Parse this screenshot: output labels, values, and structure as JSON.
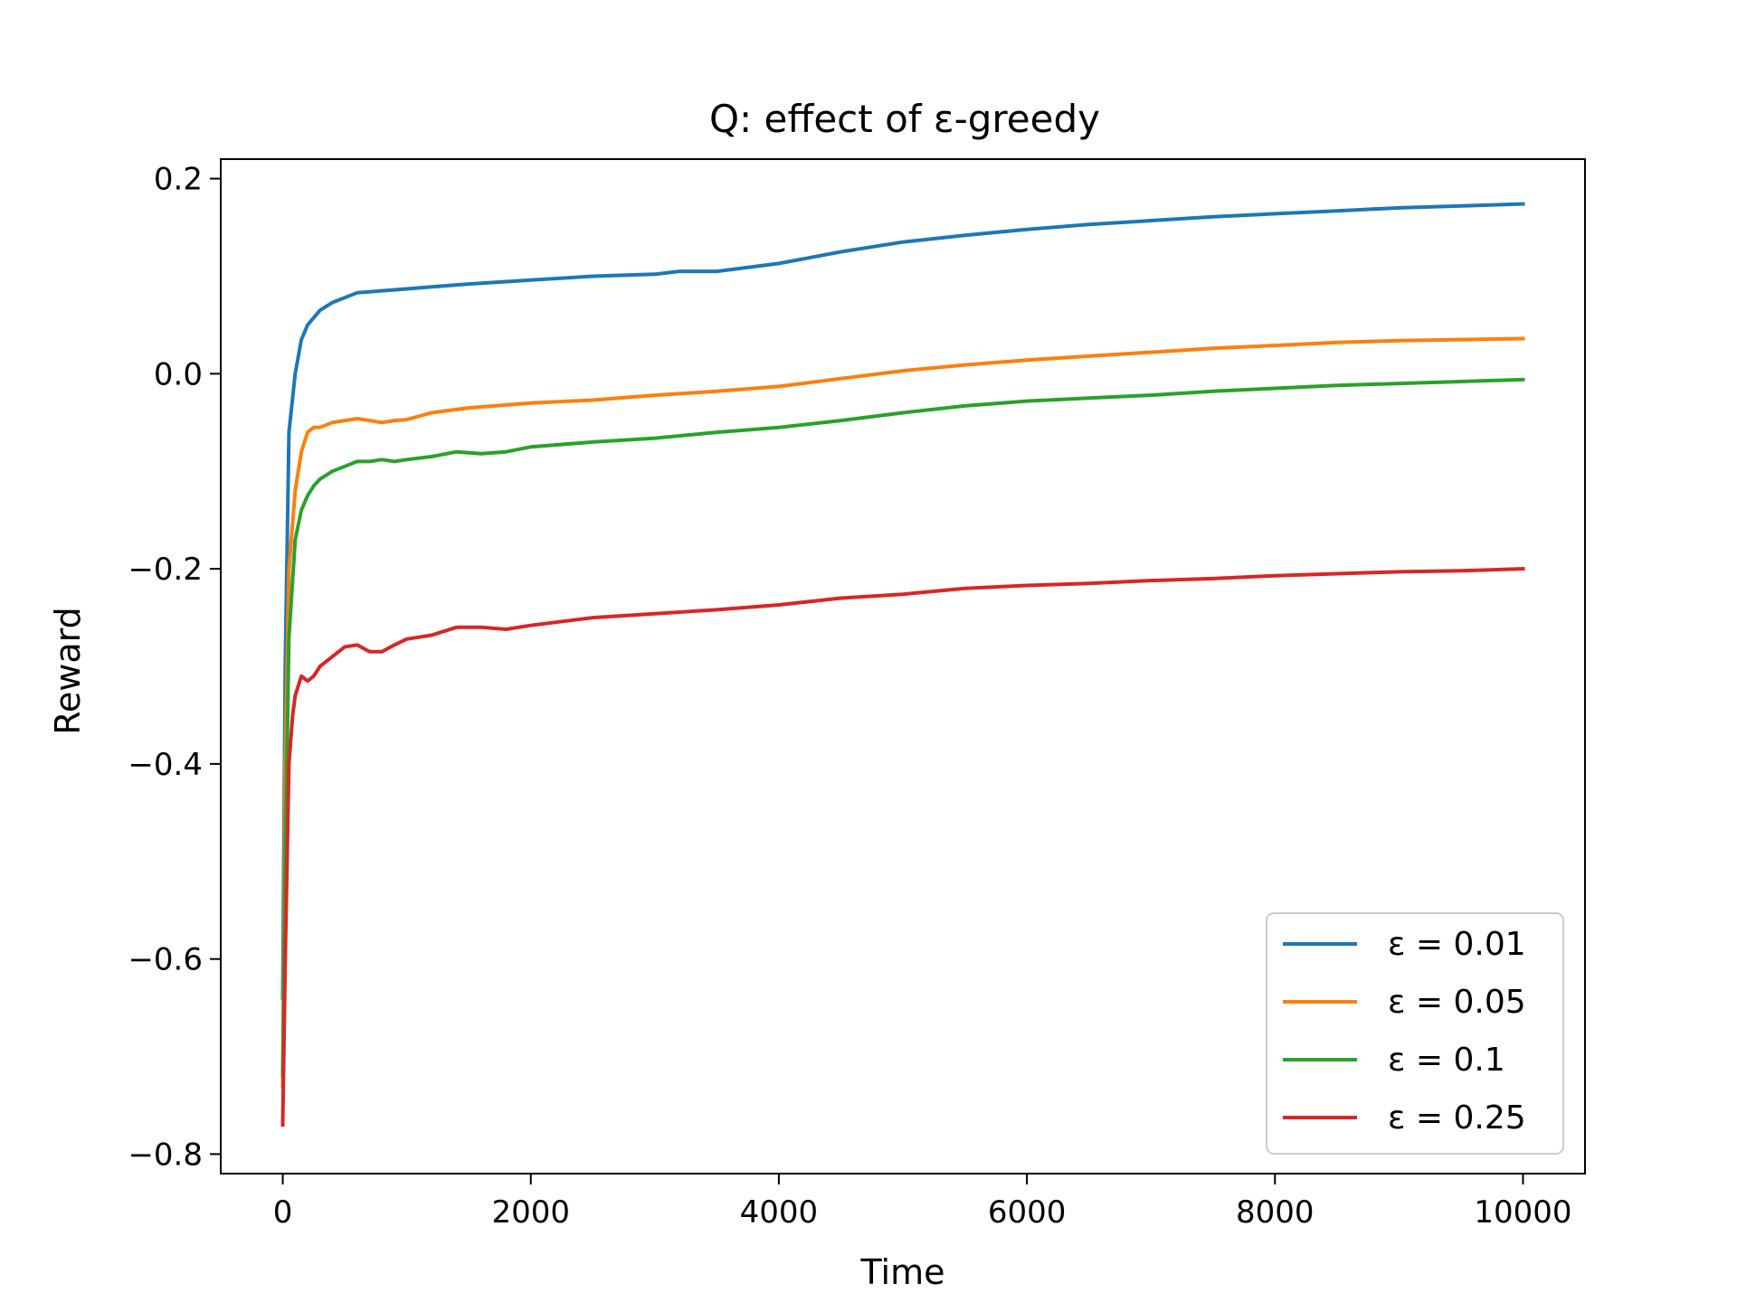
{
  "chart_data": {
    "type": "line",
    "title": "Q: effect of ε-greedy",
    "xlabel": "Time",
    "ylabel": "Reward",
    "xlim": [
      -500,
      10500
    ],
    "ylim": [
      -0.82,
      0.22
    ],
    "xticks": [
      0,
      2000,
      4000,
      6000,
      8000,
      10000
    ],
    "xtick_labels": [
      "0",
      "2000",
      "4000",
      "6000",
      "8000",
      "10000"
    ],
    "yticks": [
      -0.8,
      -0.6,
      -0.4,
      -0.2,
      0.0,
      0.2
    ],
    "ytick_labels": [
      "−0.8",
      "−0.6",
      "−0.4",
      "−0.2",
      "0.0",
      "0.2"
    ],
    "grid": false,
    "legend_position": "bottom-right",
    "series": [
      {
        "name": "ε = 0.01",
        "color": "#1f77b4",
        "x": [
          0,
          20,
          50,
          100,
          150,
          200,
          300,
          400,
          500,
          600,
          700,
          800,
          1000,
          1200,
          1500,
          2000,
          2500,
          3000,
          3200,
          3500,
          4000,
          4500,
          5000,
          5500,
          6000,
          6500,
          7000,
          7500,
          8000,
          8500,
          9000,
          9500,
          10000
        ],
        "y": [
          -0.64,
          -0.3,
          -0.06,
          0.0,
          0.035,
          0.05,
          0.065,
          0.073,
          0.078,
          0.083,
          0.084,
          0.085,
          0.087,
          0.089,
          0.092,
          0.096,
          0.1,
          0.102,
          0.105,
          0.105,
          0.113,
          0.125,
          0.135,
          0.142,
          0.148,
          0.153,
          0.157,
          0.161,
          0.164,
          0.167,
          0.17,
          0.172,
          0.174
        ]
      },
      {
        "name": "ε = 0.05",
        "color": "#ff7f0e",
        "x": [
          0,
          20,
          50,
          100,
          150,
          200,
          250,
          300,
          400,
          500,
          600,
          700,
          800,
          900,
          1000,
          1200,
          1500,
          2000,
          2500,
          3000,
          3500,
          4000,
          4500,
          5000,
          5500,
          6000,
          6500,
          7000,
          7500,
          8000,
          8500,
          9000,
          9500,
          10000
        ],
        "y": [
          -0.73,
          -0.4,
          -0.2,
          -0.12,
          -0.08,
          -0.06,
          -0.055,
          -0.055,
          -0.05,
          -0.048,
          -0.046,
          -0.048,
          -0.05,
          -0.048,
          -0.047,
          -0.04,
          -0.035,
          -0.03,
          -0.027,
          -0.022,
          -0.018,
          -0.013,
          -0.005,
          0.003,
          0.009,
          0.014,
          0.018,
          0.022,
          0.026,
          0.029,
          0.032,
          0.034,
          0.035,
          0.036
        ]
      },
      {
        "name": "ε = 0.1",
        "color": "#2ca02c",
        "x": [
          0,
          20,
          50,
          100,
          150,
          200,
          250,
          300,
          400,
          500,
          600,
          700,
          800,
          900,
          1000,
          1200,
          1400,
          1600,
          1800,
          2000,
          2500,
          3000,
          3500,
          4000,
          4500,
          5000,
          5500,
          6000,
          6500,
          7000,
          7500,
          8000,
          8500,
          9000,
          9500,
          10000
        ],
        "y": [
          -0.72,
          -0.5,
          -0.27,
          -0.17,
          -0.14,
          -0.125,
          -0.115,
          -0.108,
          -0.1,
          -0.095,
          -0.09,
          -0.09,
          -0.088,
          -0.09,
          -0.088,
          -0.085,
          -0.08,
          -0.082,
          -0.08,
          -0.075,
          -0.07,
          -0.066,
          -0.06,
          -0.055,
          -0.048,
          -0.04,
          -0.033,
          -0.028,
          -0.025,
          -0.022,
          -0.018,
          -0.015,
          -0.012,
          -0.01,
          -0.008,
          -0.006
        ]
      },
      {
        "name": "ε = 0.25",
        "color": "#d62728",
        "x": [
          0,
          20,
          50,
          80,
          100,
          150,
          200,
          250,
          300,
          400,
          500,
          600,
          700,
          800,
          900,
          1000,
          1200,
          1400,
          1600,
          1800,
          2000,
          2500,
          3000,
          3500,
          4000,
          4500,
          5000,
          5500,
          6000,
          6500,
          7000,
          7500,
          8000,
          8500,
          9000,
          9500,
          10000
        ],
        "y": [
          -0.77,
          -0.6,
          -0.4,
          -0.35,
          -0.33,
          -0.31,
          -0.315,
          -0.31,
          -0.3,
          -0.29,
          -0.28,
          -0.278,
          -0.285,
          -0.285,
          -0.278,
          -0.272,
          -0.268,
          -0.26,
          -0.26,
          -0.262,
          -0.258,
          -0.25,
          -0.246,
          -0.242,
          -0.237,
          -0.23,
          -0.226,
          -0.22,
          -0.217,
          -0.215,
          -0.212,
          -0.21,
          -0.207,
          -0.205,
          -0.203,
          -0.202,
          -0.2
        ]
      }
    ]
  }
}
